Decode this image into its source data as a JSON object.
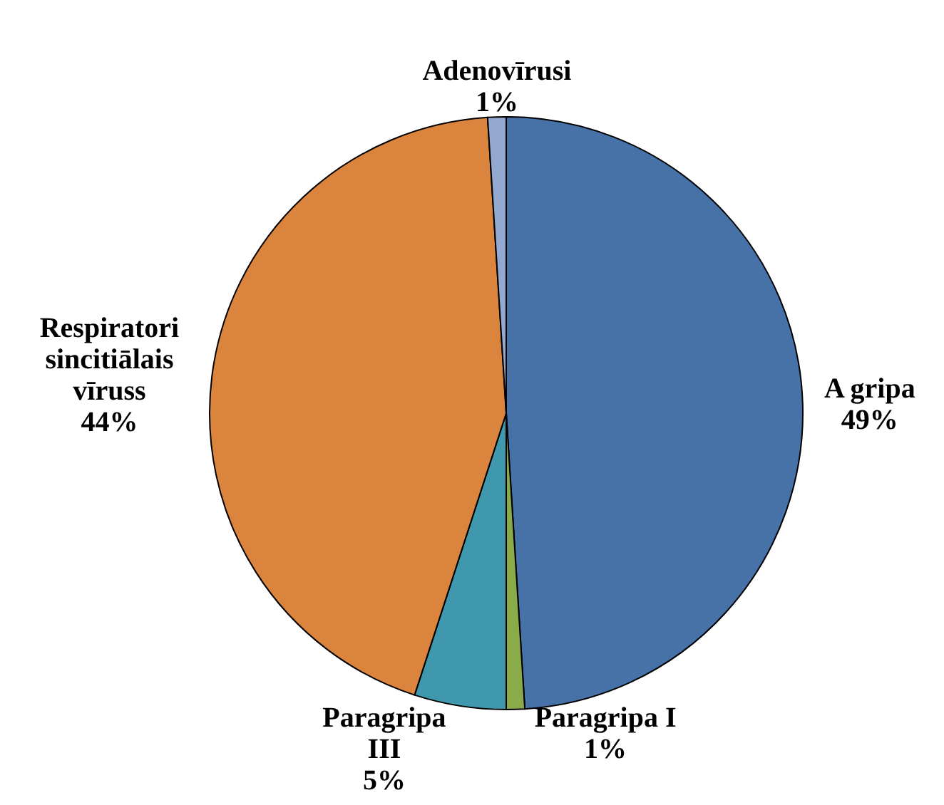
{
  "chart_data": {
    "type": "pie",
    "categories": [
      "A gripa",
      "Paragripa I",
      "Paragripa III",
      "Respiratori sincitiālais vīruss",
      "Adenovīrusi"
    ],
    "values": [
      49,
      1,
      5,
      44,
      1
    ],
    "colors": [
      "#4672a8",
      "#8aab4a",
      "#3f98ae",
      "#db843d",
      "#93a9d0"
    ],
    "value_labels": [
      "49%",
      "1%",
      "5%",
      "44%",
      "1%"
    ]
  }
}
